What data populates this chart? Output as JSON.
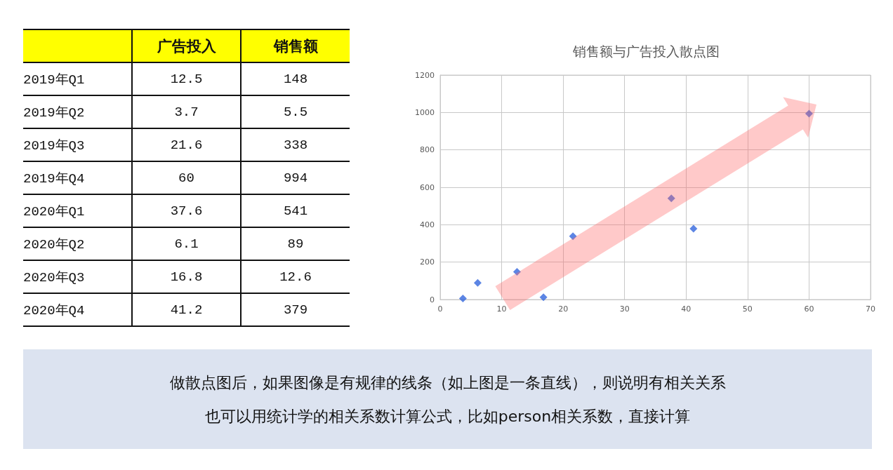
{
  "chart_data": [
    {
      "type": "other",
      "categories": [
        "2019年Q1",
        "2019年Q2",
        "2019年Q3",
        "2019年Q4",
        "2020年Q1",
        "2020年Q2",
        "2020年Q3",
        "2020年Q4"
      ],
      "series": [
        {
          "name": "广告投入",
          "values": [
            12.5,
            3.7,
            21.6,
            60,
            37.6,
            6.1,
            16.8,
            41.2
          ]
        },
        {
          "name": "销售额",
          "values": [
            148,
            5.5,
            338,
            994,
            541,
            89,
            12.6,
            379
          ]
        }
      ],
      "data_labels": true
    },
    {
      "type": "scatter",
      "title": "销售额与广告投入散点图",
      "x": [
        12.5,
        3.7,
        21.6,
        60,
        37.6,
        6.1,
        16.8,
        41.2
      ],
      "values": [
        148,
        5.5,
        338,
        994,
        541,
        89,
        12.6,
        379
      ],
      "color": "#3366dd",
      "marker": "diamond",
      "xlim": [
        0,
        70
      ],
      "xticks": [
        0,
        10,
        20,
        30,
        40,
        50,
        60,
        70
      ],
      "ylim": [
        0,
        1200
      ],
      "yticks": [
        0,
        200,
        400,
        600,
        800,
        1000,
        1200
      ],
      "grid": true,
      "annotations": [
        "做散点图后，如果图像是有规律的线条（如上图是一条直线），则说明有相关关系",
        "也可以用统计学的相关系数计算公式，比如person相关系数，直接计算"
      ]
    }
  ]
}
